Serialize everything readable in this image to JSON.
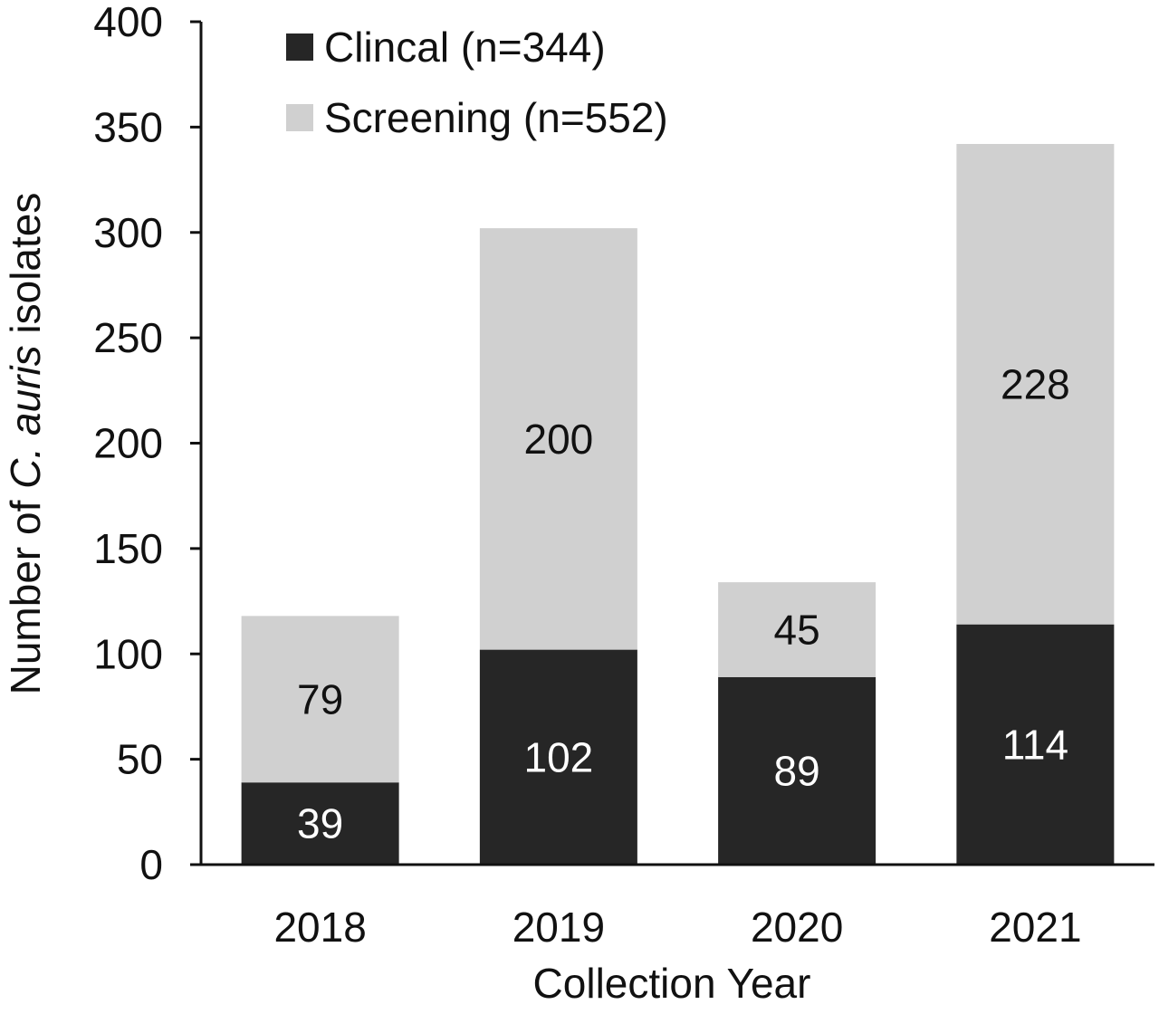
{
  "chart_data": {
    "type": "bar",
    "stacked": true,
    "xlabel": "Collection Year",
    "ylabel": {
      "before": "Number of ",
      "italic": "C. auris",
      "after": " isolates"
    },
    "ylim": [
      0,
      400
    ],
    "yticks": [
      0,
      50,
      100,
      150,
      200,
      250,
      300,
      350,
      400
    ],
    "categories": [
      "2018",
      "2019",
      "2020",
      "2021"
    ],
    "series": [
      {
        "name": "Clincal (n=344)",
        "values": [
          39,
          102,
          89,
          114
        ],
        "color": "#262626",
        "label_color": "#ffffff"
      },
      {
        "name": "Screening (n=552)",
        "values": [
          79,
          200,
          45,
          228
        ],
        "color": "#d0d0d0",
        "label_color": "#111111"
      }
    ],
    "legend_position": "top-left inside",
    "grid": false
  }
}
